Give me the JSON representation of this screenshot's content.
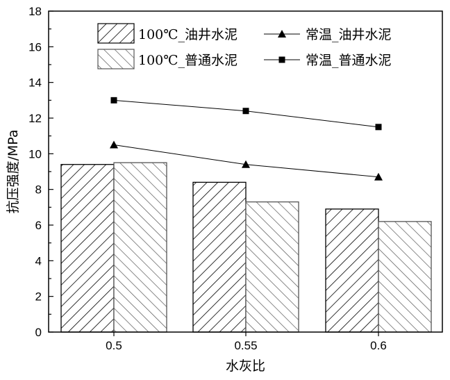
{
  "chart_data": {
    "type": "bar",
    "categories": [
      "0.5",
      "0.55",
      "0.6"
    ],
    "xlabel": "水灰比",
    "ylabel": "抗压强度/MPa",
    "ylim": [
      0,
      18
    ],
    "yticks": [
      0,
      2,
      4,
      6,
      8,
      10,
      12,
      14,
      16,
      18
    ],
    "grid": false,
    "legend_position": "top",
    "bar_series": [
      {
        "name": "100℃_油井水泥",
        "values": [
          9.4,
          8.4,
          6.9
        ],
        "pattern": "forward-hatch"
      },
      {
        "name": "100℃_普通水泥",
        "values": [
          9.5,
          7.3,
          6.2
        ],
        "pattern": "back-hatch"
      }
    ],
    "line_series": [
      {
        "name": "常温_油井水泥",
        "values": [
          10.5,
          9.4,
          8.7
        ],
        "marker": "triangle"
      },
      {
        "name": "常温_普通水泥",
        "values": [
          13.0,
          12.4,
          11.5
        ],
        "marker": "square"
      }
    ],
    "colors": {
      "bar_fill": "#ffffff",
      "hatch": "#000000",
      "line": "#000000",
      "axis": "#000000"
    }
  }
}
